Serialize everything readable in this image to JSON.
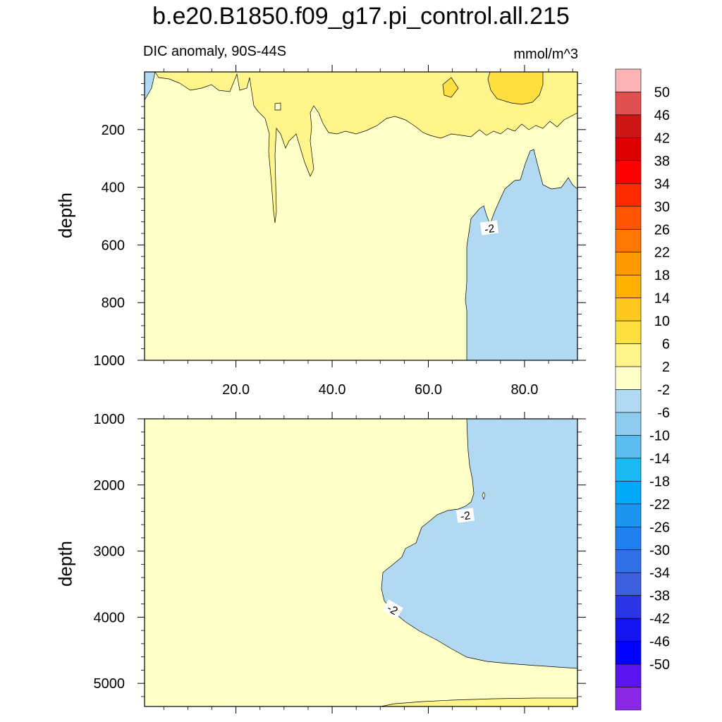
{
  "chart_data": {
    "type": "heatmap",
    "title": "b.e20.B1850.f09_g17.pi_control.all.215",
    "subtitle": "DIC anomaly, 90S-44S",
    "units": "mmol/m^3",
    "ylabel": "depth",
    "x_ticks": [
      "20.0",
      "40.0",
      "60.0",
      "80.0"
    ],
    "xlim": [
      1,
      91
    ],
    "panels": [
      {
        "name": "upper",
        "ylim": [
          1000,
          0
        ],
        "y_ticks": [
          "200",
          "400",
          "600",
          "800",
          "1000"
        ],
        "contour_label": "-2",
        "regions": [
          {
            "level": "2",
            "description": "2 to 6 band in upper ~200 m"
          },
          {
            "level": "6",
            "description": "6 to 10 patch near x 70-80 at surface"
          },
          {
            "level": "-2",
            "description": "-2 to 2 background"
          },
          {
            "level": "-6",
            "description": "-6 to -2 region east of x 67 below 270 m"
          }
        ]
      },
      {
        "name": "lower",
        "ylim": [
          5350,
          1000
        ],
        "y_ticks": [
          "1000",
          "2000",
          "3000",
          "4000",
          "5000"
        ],
        "contour_label": "-2",
        "regions": [
          {
            "level": "-2",
            "description": "-2 to 2 background"
          },
          {
            "level": "-6",
            "description": "-6 to -2 region east of x ~50, 1000-4800 m"
          },
          {
            "level": "2",
            "description": "2 to 6 thin band near bottom"
          }
        ]
      }
    ],
    "colorbar": {
      "labels": [
        "50",
        "46",
        "42",
        "38",
        "34",
        "30",
        "26",
        "22",
        "18",
        "14",
        "10",
        "6",
        "2",
        "-2",
        "-6",
        "-10",
        "-14",
        "-18",
        "-22",
        "-26",
        "-30",
        "-34",
        "-38",
        "-42",
        "-46",
        "-50"
      ],
      "colors": [
        "#fbb4b4",
        "#e05050",
        "#cc1515",
        "#dd0000",
        "#ff0000",
        "#ff2a00",
        "#ff5500",
        "#ff7700",
        "#ff9900",
        "#ffb000",
        "#ffc820",
        "#ffe040",
        "#fff58a",
        "#ffffc8",
        "#b1daf2",
        "#8fcbee",
        "#5cbef0",
        "#1cb9f4",
        "#00aaf9",
        "#1c94f0",
        "#2080ee",
        "#3270e6",
        "#3d5fe0",
        "#2a35e6",
        "#1414f0",
        "#0000ff",
        "#5a14f0",
        "#8a28e6"
      ]
    }
  }
}
